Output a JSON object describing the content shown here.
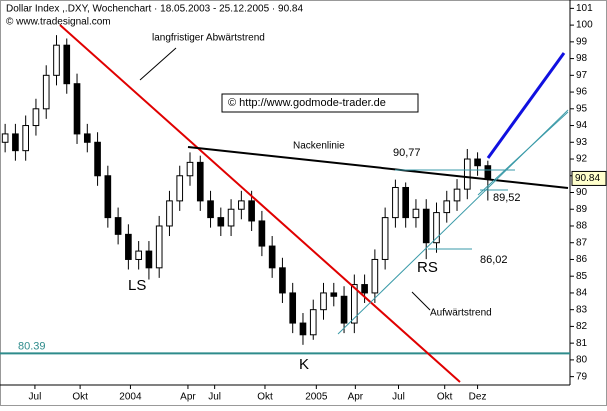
{
  "chart_data": {
    "type": "candlestick",
    "title": "Dollar Index ,.DXY, Wochenchart · 18.05.2003 - 25.12.2005 · 90.84",
    "source": "© www.tradesignal.com",
    "watermark": "© http://www.godmode-trader.de",
    "annotations": {
      "downtrend": "langfristiger Abwärtstrend",
      "neckline": "Nackenlinie",
      "neck_high": "90,77",
      "last_low": "89,52",
      "rs_low": "86,02",
      "ls": "LS",
      "k": "K",
      "rs": "RS",
      "uptrend": "Aufwärtstrend"
    },
    "support_level": {
      "value": 80.39,
      "label": "80.39"
    },
    "last_price": {
      "value": 90.84,
      "label": "90.84"
    },
    "categories": [
      null,
      null,
      null,
      null,
      null,
      null,
      null,
      null,
      null,
      null,
      null,
      null,
      null,
      null,
      null,
      null,
      null,
      null,
      null,
      null,
      null,
      null,
      null,
      null,
      null,
      null,
      null,
      null,
      null,
      null,
      null,
      null,
      null,
      null,
      null,
      null,
      null,
      null,
      null,
      null,
      null,
      null,
      null,
      null,
      null,
      null,
      null,
      null
    ],
    "open": [
      93,
      93.5,
      92.5,
      94,
      95,
      97,
      98.8,
      96.5,
      93.5,
      93,
      91,
      88.5,
      87.5,
      86,
      86.5,
      85.5,
      88,
      89.5,
      91,
      91.8,
      89.5,
      88.5,
      88,
      89,
      89.5,
      88.3,
      86.8,
      85.5,
      84,
      82.2,
      81.5,
      83,
      84,
      83.8,
      82.2,
      84.5,
      84,
      86,
      88.5,
      90.3,
      88.5,
      89,
      87,
      88.8,
      89.5,
      90.2,
      92,
      91.6
    ],
    "high": [
      94.1,
      94.1,
      94.6,
      95.6,
      97.6,
      99.4,
      99.2,
      97.1,
      94.1,
      93.6,
      91.6,
      89.1,
      88.1,
      87.1,
      87.1,
      88.6,
      90.1,
      91.6,
      92.4,
      92.2,
      90.1,
      89.1,
      89.6,
      90.1,
      90.1,
      88.9,
      87.4,
      86.1,
      84.6,
      82.8,
      83.6,
      84.6,
      84.6,
      84.4,
      85.1,
      85.1,
      86.6,
      89.1,
      90.77,
      90.6,
      89.6,
      89.6,
      89.4,
      90.1,
      90.8,
      92.6,
      92.4,
      91.9
    ],
    "low": [
      92.4,
      91.9,
      91.9,
      93.4,
      94.4,
      96.4,
      95.9,
      92.9,
      92.4,
      90.4,
      87.9,
      86.9,
      85.4,
      85.4,
      84.8,
      84.9,
      87.4,
      88.9,
      90.4,
      88.9,
      87.9,
      87.4,
      87.4,
      88.4,
      87.7,
      86.2,
      84.9,
      83.4,
      81.6,
      80.9,
      81.2,
      82.4,
      83.2,
      81.6,
      81.6,
      83.4,
      83.4,
      85.4,
      87.9,
      87.9,
      87.9,
      86.02,
      86.4,
      88.2,
      88.9,
      89.6,
      91,
      89.52
    ],
    "close": [
      93.5,
      92.5,
      94,
      95,
      97,
      98.8,
      96.5,
      93.5,
      93,
      91,
      88.5,
      87.5,
      86,
      86.5,
      85.5,
      88,
      89.5,
      91,
      91.8,
      89.5,
      88.5,
      88,
      89,
      89.5,
      88.3,
      86.8,
      85.5,
      84,
      82.2,
      81.5,
      83,
      84,
      83.8,
      82.2,
      84.5,
      84,
      86,
      88.5,
      90.3,
      88.5,
      89,
      87,
      88.8,
      89.5,
      90.2,
      92,
      91.6,
      90.84
    ],
    "xlim": [
      -0.5,
      55
    ],
    "xticks": [
      {
        "value": 2.9,
        "label": "Jul"
      },
      {
        "value": 7.3,
        "label": "Okt"
      },
      {
        "value": 12.2,
        "label": "2004"
      },
      {
        "value": 17.8,
        "label": "Apr"
      },
      {
        "value": 20.4,
        "label": "Jul"
      },
      {
        "value": 25.3,
        "label": "Okt"
      },
      {
        "value": 30.3,
        "label": "2005"
      },
      {
        "value": 34.1,
        "label": "Apr"
      },
      {
        "value": 38.3,
        "label": "Jul"
      },
      {
        "value": 42.8,
        "label": "Okt"
      },
      {
        "value": 46.0,
        "label": "Dez"
      }
    ],
    "ylim": [
      78.5,
      101.5
    ],
    "yticks": [
      79,
      80,
      81,
      82,
      83,
      84,
      85,
      86,
      87,
      88,
      89,
      90,
      91,
      92,
      93,
      94,
      95,
      96,
      97,
      98,
      99,
      100,
      101
    ],
    "support_color": "#2e8b8b",
    "price_box_color": "#ffffcc",
    "grid": false
  }
}
